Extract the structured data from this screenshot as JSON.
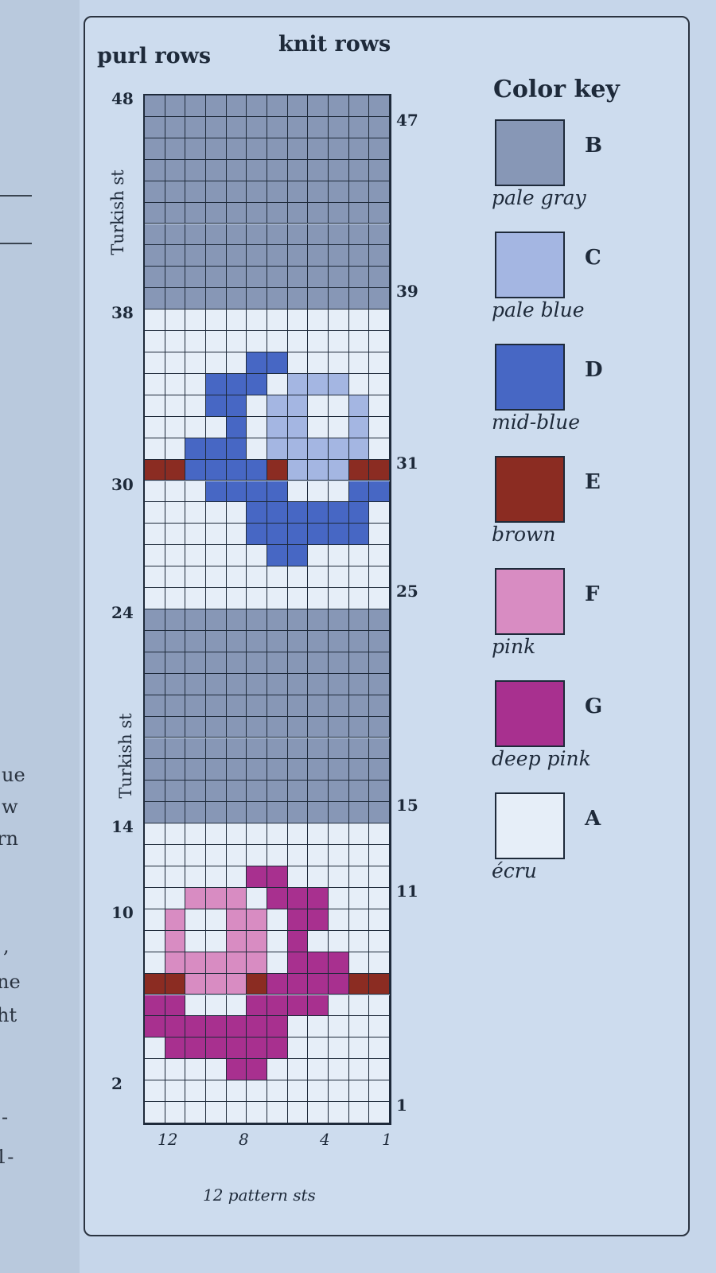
{
  "left_page": {
    "fragments": [
      "ue",
      "w",
      "rn",
      ",",
      "ne",
      "ht",
      "-",
      "1-"
    ]
  },
  "header": {
    "purl_rows": "purl rows",
    "knit_rows": "knit rows",
    "color_key": "Color key"
  },
  "side_labels": {
    "turkish_upper": "Turkish st",
    "turkish_lower": "Turkish st"
  },
  "row_labels_left": [
    "48",
    "38",
    "30",
    "24",
    "14",
    "10",
    "2"
  ],
  "row_labels_right": [
    "47",
    "39",
    "31",
    "25",
    "15",
    "11",
    "1"
  ],
  "column_labels": [
    "12",
    "8",
    "4",
    "1"
  ],
  "footer": "12 pattern sts",
  "color_key": [
    {
      "letter": "B",
      "name": "pale gray",
      "color": "#8797b6"
    },
    {
      "letter": "C",
      "name": "pale blue",
      "color": "#a4b6e2"
    },
    {
      "letter": "D",
      "name": "mid-blue",
      "color": "#4767c4"
    },
    {
      "letter": "E",
      "name": "brown",
      "color": "#8b2c22"
    },
    {
      "letter": "F",
      "name": "pink",
      "color": "#d88cc2"
    },
    {
      "letter": "G",
      "name": "deep pink",
      "color": "#a8308f"
    },
    {
      "letter": "A",
      "name": "écru",
      "color": "#e6eef8"
    }
  ],
  "chart_grid": {
    "columns": 12,
    "rows_top_to_bottom_48_to_1": [
      "BBBBBBBBBBBB",
      "BBBBBBBBBBBB",
      "BBBBBBBBBBBB",
      "BBBBBBBBBBBB",
      "BBBBBBBBBBBB",
      "BBBBBBBBBBBB",
      "BBBBBBBBBBBB",
      "BBBBBBBBBBBB",
      "BBBBBBBBBBBB",
      "BBBBBBBBBBBB",
      "AAAAAAAAAAAA",
      "AAAAAAAAAAAA",
      "AAAAADDAAAAA",
      "AAADDDACCCAA",
      "AAADDACCAACA",
      "AAAADACCAACA",
      "AADDDACCCCCA",
      "EEDDDDECCCEE",
      "AAADDDDAAADD",
      "AAAAADDDDDDA",
      "AAAAADDDDDDA",
      "AAAAAADDAAAA",
      "AAAAAAAAAAAA",
      "AAAAAAAAAAAA",
      "BBBBBBBBBBBB",
      "BBBBBBBBBBBB",
      "BBBBBBBBBBBB",
      "BBBBBBBBBBBB",
      "BBBBBBBBBBBB",
      "BBBBBBBBBBBB",
      "BBBBBBBBBBBB",
      "BBBBBBBBBBBB",
      "BBBBBBBBBBBB",
      "BBBBBBBBBBBB",
      "AAAAAAAAAAAA",
      "AAAAAAAAAAAA",
      "AAAAAGGAAAAA",
      "AAFFFAGGGAAA",
      "AFAAFFAGGAAA",
      "AFAAFFAGAAAA",
      "AFFFFFAGGGAA",
      "EEFFFEGGGGEE",
      "GGAAAGGGGAAA",
      "GGGGGGGAAAAA",
      "AGGGGGGAAAAA",
      "AAAAGGAAAAAA",
      "AAAAAAAAAAAA",
      "AAAAAAAAAAAA"
    ]
  }
}
